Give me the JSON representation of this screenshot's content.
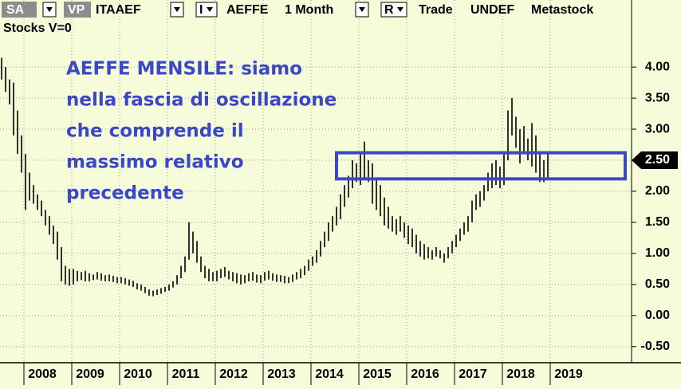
{
  "chart_data": {
    "type": "hilo",
    "header": {
      "sa": "SA",
      "vp": "VP",
      "symbol": "ITAAEF",
      "i": "I",
      "name": "AEFFE",
      "period": "1 Month",
      "r": "R",
      "trade": "Trade",
      "undef": "UNDEF",
      "source": "Metastock",
      "line2": "Stocks  V=0"
    },
    "annotation": [
      "AEFFE MENSILE: siamo",
      "nella fascia di oscillazione",
      "che comprende il",
      "massimo relativo",
      "precedente"
    ],
    "band": [
      2.2,
      2.62
    ],
    "band_color": "#3a48c6",
    "price_marker": 2.5,
    "color": "#000000",
    "grid": true,
    "ylim": [
      -0.76,
      5.08
    ],
    "yticks": [
      {
        "value": -0.5,
        "label": "-0.50"
      },
      {
        "value": 0,
        "label": "0.00"
      },
      {
        "value": 0.5,
        "label": "0.50"
      },
      {
        "value": 1,
        "label": "1.00"
      },
      {
        "value": 1.5,
        "label": "1.50"
      },
      {
        "value": 2,
        "label": "2.00"
      },
      {
        "value": 2.5,
        "label": "2.50"
      },
      {
        "value": 3,
        "label": "3.00"
      },
      {
        "value": 3.5,
        "label": "3.50"
      },
      {
        "value": 4,
        "label": "4.00"
      }
    ],
    "categories": [
      null,
      null,
      null,
      null,
      null,
      null,
      "2008",
      null,
      null,
      null,
      null,
      null,
      null,
      null,
      null,
      null,
      null,
      null,
      "2009",
      null,
      null,
      null,
      null,
      null,
      null,
      null,
      null,
      null,
      null,
      null,
      "2010",
      null,
      null,
      null,
      null,
      null,
      null,
      null,
      null,
      null,
      null,
      null,
      "2011",
      null,
      null,
      null,
      null,
      null,
      null,
      null,
      null,
      null,
      null,
      null,
      "2012",
      null,
      null,
      null,
      null,
      null,
      null,
      null,
      null,
      null,
      null,
      null,
      "2013",
      null,
      null,
      null,
      null,
      null,
      null,
      null,
      null,
      null,
      null,
      null,
      "2014",
      null,
      null,
      null,
      null,
      null,
      null,
      null,
      null,
      null,
      null,
      null,
      "2015",
      null,
      null,
      null,
      null,
      null,
      null,
      null,
      null,
      null,
      null,
      null,
      "2016",
      null,
      null,
      null,
      null,
      null,
      null,
      null,
      null,
      null,
      null,
      null,
      "2017",
      null,
      null,
      null,
      null,
      null,
      null,
      null,
      null,
      null,
      null,
      null,
      "2018",
      null,
      null,
      null,
      null,
      null,
      null,
      null,
      null,
      null,
      null,
      null,
      "2019"
    ],
    "high": [
      4.15,
      4.0,
      3.8,
      3.75,
      3.3,
      2.9,
      2.6,
      2.3,
      2.1,
      1.95,
      1.85,
      1.7,
      1.6,
      1.45,
      1.35,
      1.1,
      0.8,
      0.75,
      0.75,
      0.72,
      0.7,
      0.72,
      0.68,
      0.66,
      0.7,
      0.68,
      0.65,
      0.66,
      0.64,
      0.62,
      0.62,
      0.6,
      0.58,
      0.56,
      0.52,
      0.5,
      0.46,
      0.42,
      0.4,
      0.42,
      0.44,
      0.46,
      0.5,
      0.55,
      0.65,
      0.8,
      0.95,
      1.5,
      1.35,
      1.2,
      0.95,
      0.8,
      0.75,
      0.7,
      0.72,
      0.75,
      0.78,
      0.72,
      0.7,
      0.68,
      0.66,
      0.65,
      0.68,
      0.7,
      0.66,
      0.65,
      0.7,
      0.72,
      0.68,
      0.66,
      0.65,
      0.64,
      0.62,
      0.66,
      0.7,
      0.75,
      0.8,
      0.9,
      0.95,
      1.05,
      1.2,
      1.35,
      1.5,
      1.6,
      1.75,
      1.95,
      2.1,
      2.25,
      2.5,
      2.45,
      2.6,
      2.8,
      2.5,
      2.45,
      2.2,
      2.1,
      1.9,
      1.75,
      1.6,
      1.55,
      1.6,
      1.5,
      1.45,
      1.4,
      1.3,
      1.2,
      1.15,
      1.1,
      1.05,
      1.1,
      1.05,
      1.0,
      1.1,
      1.2,
      1.3,
      1.4,
      1.5,
      1.6,
      1.85,
      1.95,
      2.0,
      2.1,
      2.3,
      2.45,
      2.5,
      2.4,
      2.6,
      3.3,
      3.5,
      3.2,
      3.0,
      3.05,
      2.85,
      3.1,
      2.9,
      2.6,
      2.5,
      2.6,
      null
    ],
    "low": [
      3.8,
      3.6,
      3.4,
      2.9,
      2.6,
      2.3,
      1.7,
      1.85,
      1.8,
      1.7,
      1.6,
      1.45,
      1.3,
      1.15,
      0.9,
      0.55,
      0.5,
      0.48,
      0.5,
      0.55,
      0.57,
      0.55,
      0.55,
      0.57,
      0.58,
      0.56,
      0.55,
      0.55,
      0.54,
      0.52,
      0.52,
      0.5,
      0.48,
      0.46,
      0.42,
      0.4,
      0.36,
      0.32,
      0.31,
      0.33,
      0.35,
      0.38,
      0.4,
      0.45,
      0.5,
      0.6,
      0.7,
      0.9,
      1.0,
      0.85,
      0.7,
      0.6,
      0.55,
      0.55,
      0.55,
      0.6,
      0.62,
      0.58,
      0.55,
      0.52,
      0.5,
      0.52,
      0.55,
      0.56,
      0.53,
      0.52,
      0.56,
      0.58,
      0.56,
      0.54,
      0.54,
      0.52,
      0.52,
      0.54,
      0.58,
      0.6,
      0.65,
      0.72,
      0.8,
      0.85,
      0.95,
      1.1,
      1.2,
      1.35,
      1.45,
      1.55,
      1.75,
      1.9,
      2.05,
      2.15,
      2.1,
      2.2,
      2.15,
      1.8,
      1.7,
      1.6,
      1.45,
      1.4,
      1.35,
      1.3,
      1.35,
      1.25,
      1.15,
      1.1,
      1.0,
      0.95,
      0.9,
      0.92,
      0.9,
      0.95,
      0.92,
      0.85,
      0.92,
      1.0,
      1.1,
      1.2,
      1.3,
      1.35,
      1.5,
      1.7,
      1.75,
      1.85,
      2.0,
      2.05,
      2.1,
      2.05,
      2.1,
      2.5,
      2.9,
      2.7,
      2.45,
      2.6,
      2.5,
      2.4,
      2.3,
      2.15,
      2.15,
      2.2,
      null
    ]
  }
}
